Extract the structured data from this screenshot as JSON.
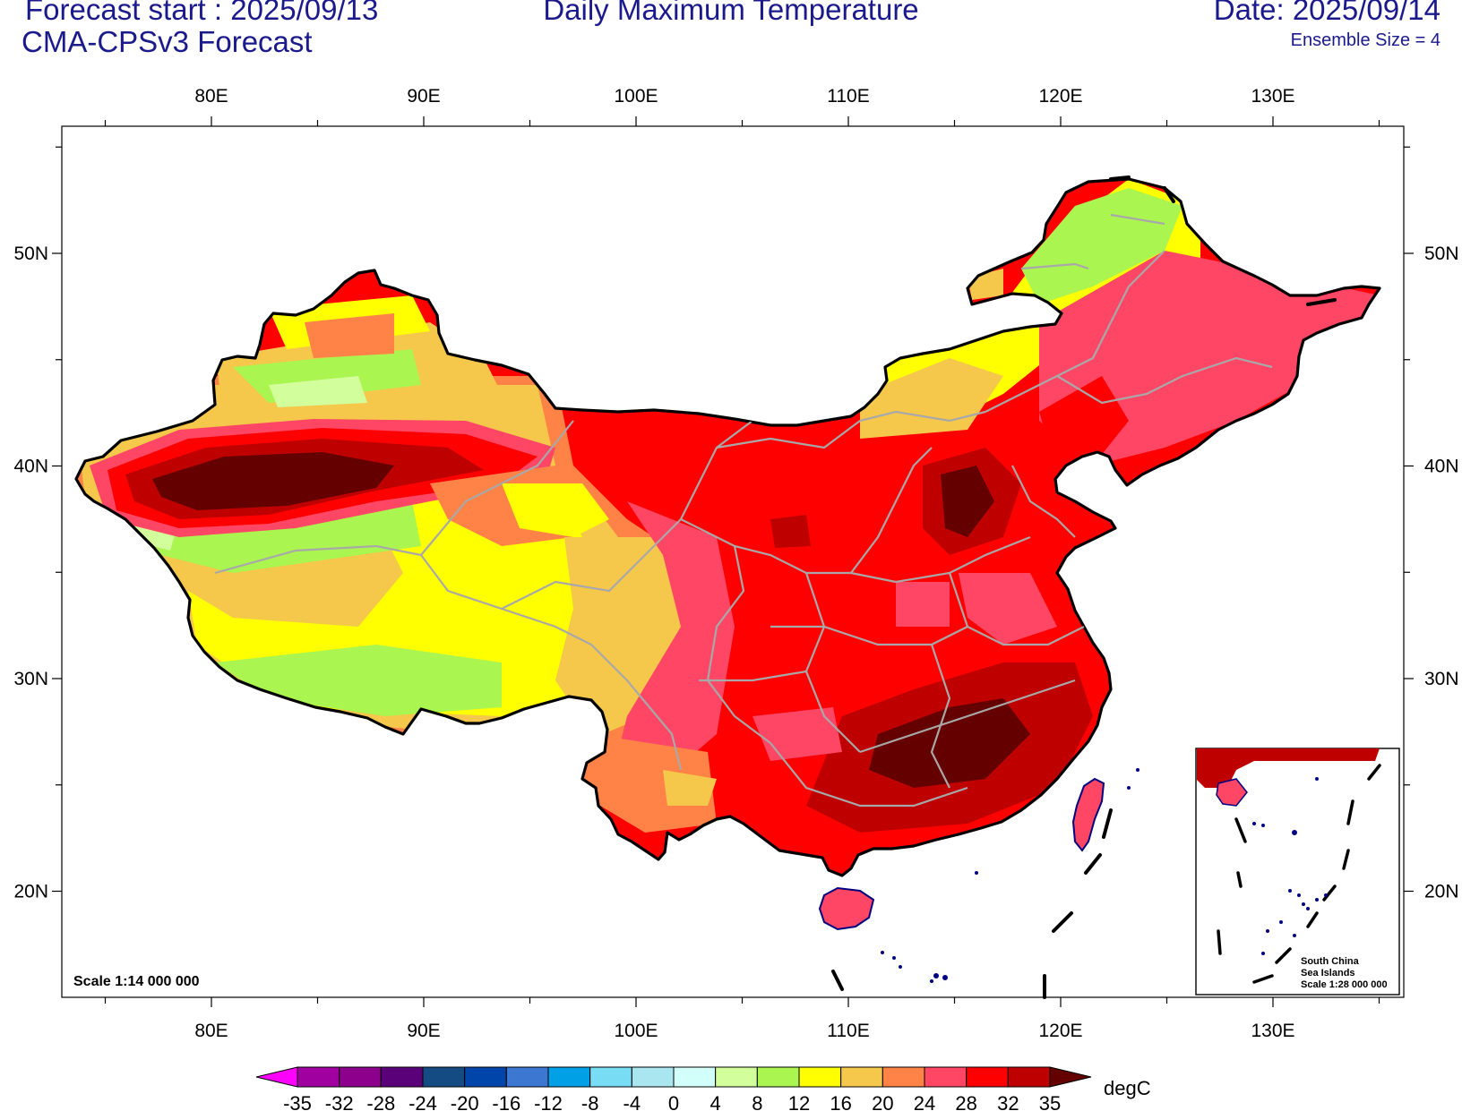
{
  "header": {
    "forecast_start": "Forecast start : 2025/09/13",
    "model": "CMA-CPSv3 Forecast",
    "title": "Daily Maximum Temperature",
    "date": "Date: 2025/09/14",
    "ensemble": "Ensemble Size = 4"
  },
  "map": {
    "lon_ticks": [
      "80E",
      "90E",
      "100E",
      "110E",
      "120E",
      "130E"
    ],
    "lat_ticks": [
      "50N",
      "40N",
      "30N",
      "20N"
    ],
    "scale_label": "Scale 1:14 000 000"
  },
  "inset": {
    "line1": "South China",
    "line2": "Sea Islands",
    "line3": "Scale 1:28 000 000"
  },
  "colorbar": {
    "unit": "degC",
    "levels": [
      "-35",
      "-32",
      "-28",
      "-24",
      "-20",
      "-16",
      "-12",
      "-8",
      "-4",
      "0",
      "4",
      "8",
      "12",
      "16",
      "20",
      "24",
      "28",
      "32",
      "35"
    ],
    "colors": [
      "#ff00ff",
      "#a000a0",
      "#8c008c",
      "#5a0078",
      "#144b82",
      "#0046aa",
      "#3c78d2",
      "#00a0e6",
      "#78dcf5",
      "#aae6f0",
      "#d2fffa",
      "#d2ff9b",
      "#aaf550",
      "#ffff00",
      "#f5c84b",
      "#ff8246",
      "#ff4664",
      "#ff0000",
      "#be0000",
      "#640000"
    ]
  }
}
